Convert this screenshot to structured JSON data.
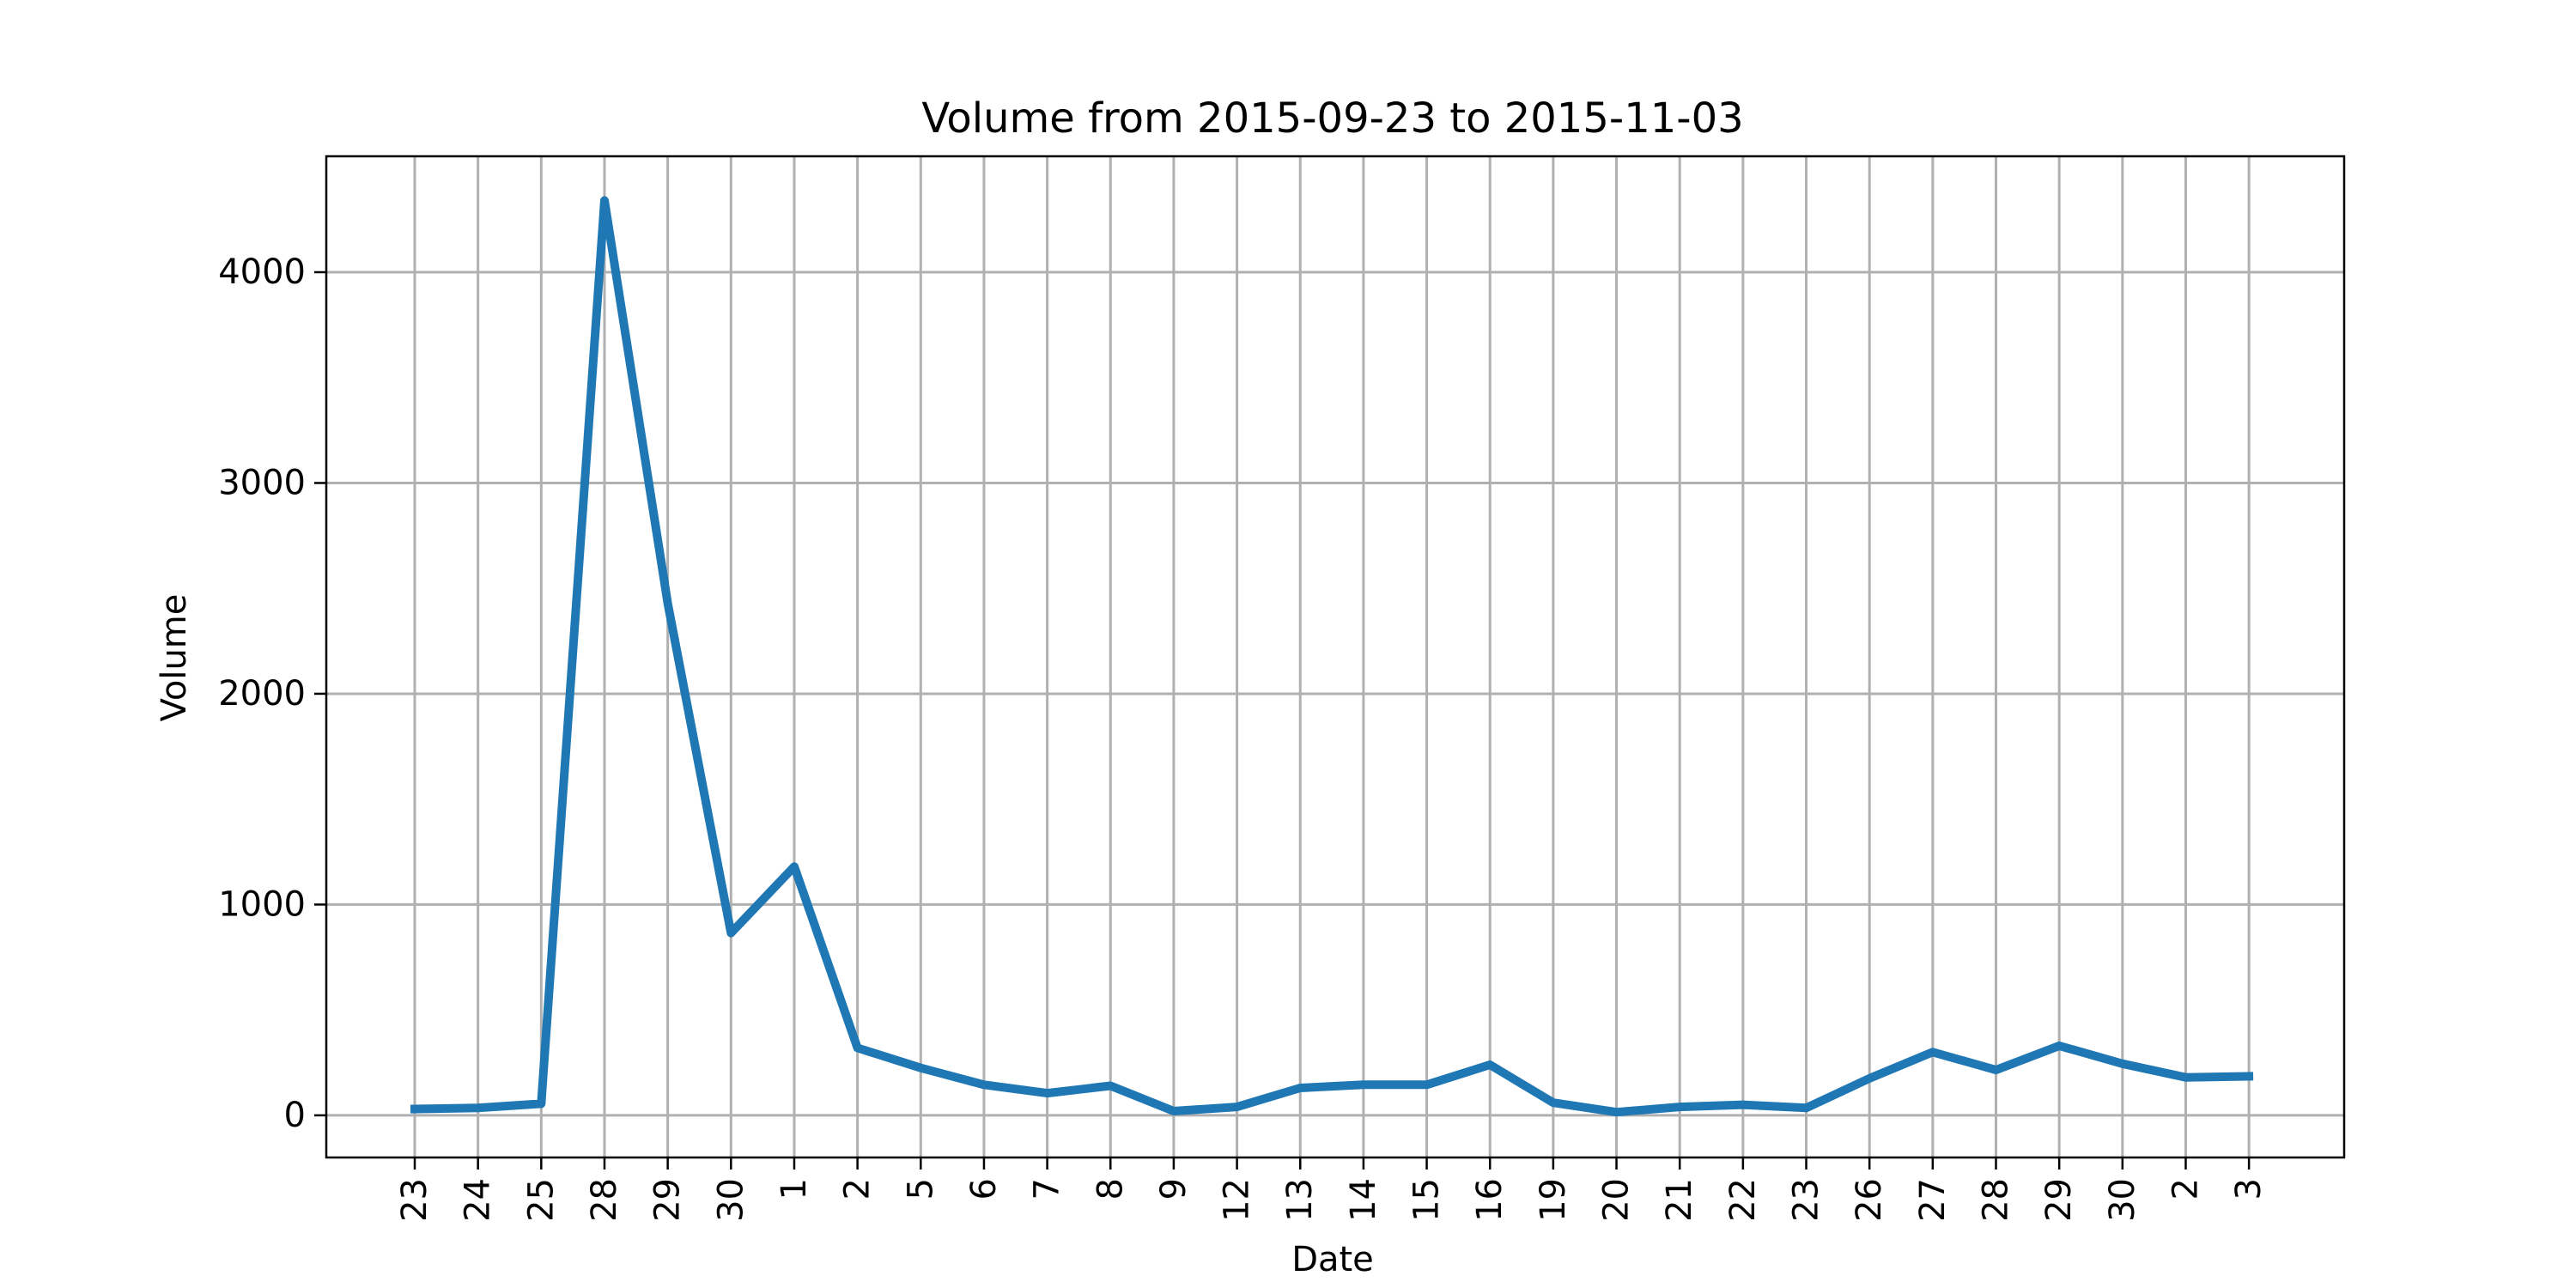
{
  "chart_data": {
    "type": "line",
    "title": "Volume from 2015-09-23 to 2015-11-03",
    "xlabel": "Date",
    "ylabel": "Volume",
    "grid": true,
    "x": [
      "2015-09-23",
      "2015-09-24",
      "2015-09-25",
      "2015-09-28",
      "2015-09-29",
      "2015-09-30",
      "2015-10-01",
      "2015-10-02",
      "2015-10-05",
      "2015-10-06",
      "2015-10-07",
      "2015-10-08",
      "2015-10-09",
      "2015-10-12",
      "2015-10-13",
      "2015-10-14",
      "2015-10-15",
      "2015-10-16",
      "2015-10-19",
      "2015-10-20",
      "2015-10-21",
      "2015-10-22",
      "2015-10-23",
      "2015-10-26",
      "2015-10-27",
      "2015-10-28",
      "2015-10-29",
      "2015-10-30",
      "2015-11-02",
      "2015-11-03"
    ],
    "x_tick_labels": [
      "23",
      "24",
      "25",
      "28",
      "29",
      "30",
      "1",
      "2",
      "5",
      "6",
      "7",
      "8",
      "9",
      "12",
      "13",
      "14",
      "15",
      "16",
      "19",
      "20",
      "21",
      "22",
      "23",
      "26",
      "27",
      "28",
      "29",
      "30",
      "2",
      "3"
    ],
    "y_ticks": [
      0,
      1000,
      2000,
      3000,
      4000
    ],
    "ylim": [
      -200,
      4550
    ],
    "series": [
      {
        "color": "#1f77b4",
        "values": [
          30,
          35,
          55,
          4340,
          2430,
          865,
          1180,
          320,
          225,
          145,
          105,
          140,
          20,
          40,
          130,
          145,
          145,
          240,
          60,
          15,
          40,
          50,
          35,
          175,
          300,
          215,
          330,
          245,
          180,
          185
        ]
      }
    ]
  }
}
